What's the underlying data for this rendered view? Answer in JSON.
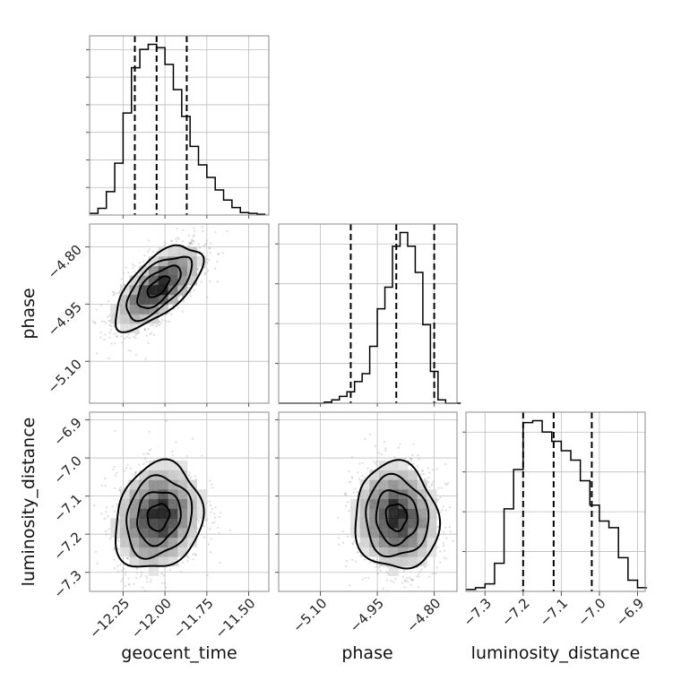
{
  "chart_data": {
    "type": "corner",
    "parameters": [
      "geocent_time",
      "phase",
      "luminosity_distance"
    ],
    "axes": {
      "geocent_time": {
        "label": "geocent_time",
        "range": [
          -12.45,
          -11.38
        ],
        "ticks": [
          -12.25,
          -12.0,
          -11.75,
          -11.5
        ],
        "tick_labels": [
          "−12.25",
          "−12.00",
          "−11.75",
          "−11.50"
        ]
      },
      "phase": {
        "label": "phase",
        "range": [
          -5.21,
          -4.74
        ],
        "ticks": [
          -5.1,
          -4.95,
          -4.8
        ],
        "tick_labels": [
          "−5.10",
          "−4.95",
          "−4.80"
        ]
      },
      "luminosity_distance": {
        "label": "luminosity_distance",
        "range": [
          -7.35,
          -6.88
        ],
        "ticks": [
          -7.3,
          -7.2,
          -7.1,
          -7.0,
          -6.9
        ],
        "tick_labels": [
          "−7.3",
          "−7.2",
          "−7.1",
          "−7.0",
          "−6.9"
        ]
      }
    },
    "diagonal": [
      {
        "parameter": "geocent_time",
        "bin_edges": [
          -12.45,
          -12.4,
          -12.35,
          -12.3,
          -12.25,
          -12.2,
          -12.15,
          -12.1,
          -12.05,
          -12.0,
          -11.95,
          -11.9,
          -11.85,
          -11.8,
          -11.75,
          -11.7,
          -11.65,
          -11.6,
          -11.55,
          -11.5,
          -11.45,
          -11.4
        ],
        "counts": [
          2,
          8,
          28,
          62,
          122,
          176,
          198,
          204,
          200,
          180,
          150,
          118,
          82,
          60,
          45,
          30,
          18,
          9,
          3,
          2,
          1
        ],
        "quantiles": [
          -12.18,
          -12.05,
          -11.87
        ]
      },
      {
        "parameter": "phase",
        "bin_edges": [
          -5.21,
          -5.19,
          -5.17,
          -5.15,
          -5.13,
          -5.11,
          -5.09,
          -5.07,
          -5.05,
          -5.03,
          -5.01,
          -4.99,
          -4.97,
          -4.95,
          -4.93,
          -4.91,
          -4.89,
          -4.87,
          -4.85,
          -4.83,
          -4.81,
          -4.79,
          -4.77,
          -4.75,
          -4.73
        ],
        "counts": [
          0,
          0,
          0,
          0,
          0,
          0,
          1,
          3,
          6,
          10,
          19,
          26,
          50,
          83,
          102,
          138,
          150,
          138,
          115,
          69,
          28,
          3,
          0,
          0
        ],
        "quantiles": [
          -5.02,
          -4.9,
          -4.8
        ]
      },
      {
        "parameter": "luminosity_distance",
        "bin_edges": [
          -7.35,
          -7.325,
          -7.3,
          -7.275,
          -7.25,
          -7.225,
          -7.2,
          -7.175,
          -7.15,
          -7.125,
          -7.1,
          -7.075,
          -7.05,
          -7.025,
          -7.0,
          -6.975,
          -6.95,
          -6.925,
          -6.9,
          -6.875
        ],
        "counts": [
          2,
          4,
          8,
          30,
          88,
          130,
          180,
          182,
          170,
          160,
          150,
          140,
          118,
          92,
          75,
          68,
          36,
          12,
          4
        ],
        "quantiles": [
          -7.2,
          -7.12,
          -7.02
        ]
      }
    ],
    "pairs": [
      {
        "x": "geocent_time",
        "y": "phase",
        "center": [
          -12.04,
          -4.905
        ],
        "sd": [
          0.13,
          0.055
        ],
        "rho": 0.65,
        "levels_sigma": [
          0.5,
          1.0,
          1.5,
          2.0
        ]
      },
      {
        "x": "geocent_time",
        "y": "luminosity_distance",
        "center": [
          -12.04,
          -7.155
        ],
        "sd": [
          0.13,
          0.07
        ],
        "rho": 0.15,
        "levels_sigma": [
          0.5,
          1.0,
          1.5,
          2.0
        ]
      },
      {
        "x": "phase",
        "y": "luminosity_distance",
        "center": [
          -4.9,
          -7.155
        ],
        "sd": [
          0.055,
          0.07
        ],
        "rho": -0.05,
        "levels_sigma": [
          0.5,
          1.0,
          1.5,
          2.0
        ]
      }
    ],
    "grid": true,
    "colors": {
      "hist": "#000000",
      "density_dark": "#000000",
      "scatter": "#9a9a9a",
      "grid": "#bdbdbd"
    }
  }
}
